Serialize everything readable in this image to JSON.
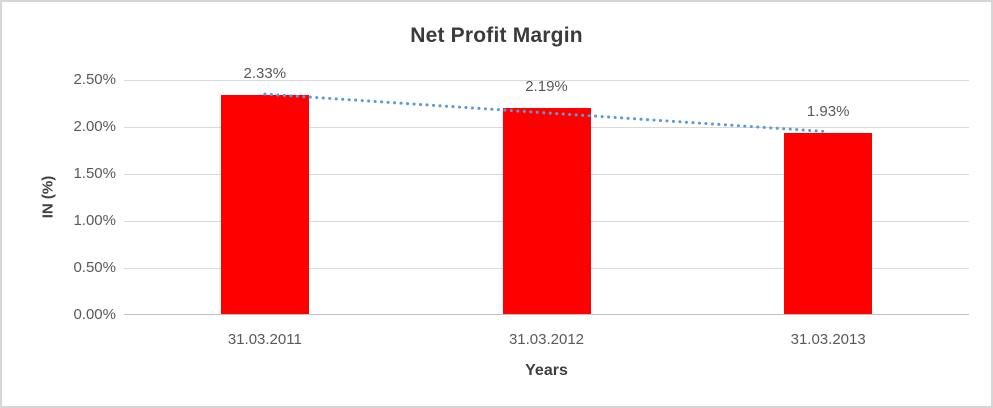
{
  "chart_data": {
    "type": "bar",
    "title": "Net Profit Margin",
    "xlabel": "Years",
    "ylabel": "IN (%)",
    "categories": [
      "31.03.2011",
      "31.03.2012",
      "31.03.2013"
    ],
    "values": [
      2.33,
      2.19,
      1.93
    ],
    "data_labels": [
      "2.33%",
      "2.19%",
      "1.93%"
    ],
    "ylim": [
      0,
      2.5
    ],
    "yticks": [
      {
        "value": 0.0,
        "label": "0.00%"
      },
      {
        "value": 0.5,
        "label": "0.50%"
      },
      {
        "value": 1.0,
        "label": "1.00%"
      },
      {
        "value": 1.5,
        "label": "1.50%"
      },
      {
        "value": 2.0,
        "label": "2.00%"
      },
      {
        "value": 2.5,
        "label": "2.50%"
      }
    ],
    "grid": true,
    "legend": false,
    "bar_color": "#ff0000",
    "trendline": {
      "type": "linear",
      "style": "dotted",
      "color": "#5b9bd5"
    },
    "colors": {
      "title_text": "#3b3b3b",
      "axis_title_text": "#404040",
      "tick_text": "#595959",
      "gridline": "#d9d9d9",
      "axis_line": "#bfbfbf",
      "background": "#ffffff",
      "border": "#d6d6d6"
    }
  }
}
